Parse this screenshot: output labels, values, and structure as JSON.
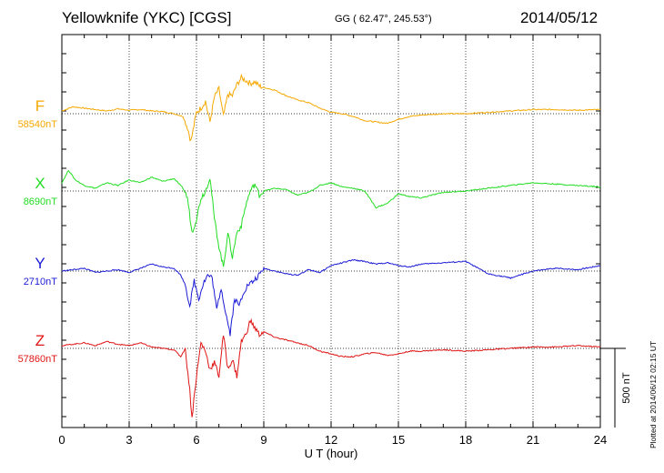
{
  "header": {
    "station": "Yellowknife (YKC)  [CGS]",
    "coords": "GG ( 62.47°, 245.53°)",
    "date": "2014/05/12"
  },
  "plotted_note": "Plotted at 2014/06/12 02:15 UT",
  "scale_bar_label": "500 nT",
  "chart_data": {
    "type": "line",
    "xlabel": "U T (hour)",
    "xlim": [
      0,
      24
    ],
    "xticks": [
      "0",
      "3",
      "6",
      "9",
      "12",
      "15",
      "18",
      "21",
      "24"
    ],
    "scale_nT_per_division": 500,
    "grid": true,
    "series": [
      {
        "name": "F",
        "baseline_label": "58540nT",
        "color": "#f5a800",
        "x": [
          0,
          0.5,
          1,
          1.5,
          2,
          2.5,
          3,
          3.5,
          4,
          4.5,
          5,
          5.4,
          5.6,
          5.75,
          5.85,
          6,
          6.2,
          6.4,
          6.6,
          6.8,
          7,
          7.2,
          7.4,
          7.6,
          7.8,
          8,
          8.2,
          8.4,
          8.6,
          8.8,
          9,
          9.5,
          10,
          10.5,
          11,
          11.5,
          12,
          12.5,
          13,
          13.5,
          14,
          14.5,
          15,
          15.5,
          16,
          17,
          18,
          19,
          20,
          21,
          22,
          23,
          24
        ],
        "values": [
          20,
          50,
          40,
          30,
          20,
          35,
          25,
          30,
          20,
          15,
          0,
          -20,
          -100,
          -200,
          -120,
          10,
          40,
          90,
          -60,
          120,
          180,
          -20,
          140,
          130,
          210,
          260,
          240,
          220,
          230,
          200,
          190,
          170,
          130,
          100,
          80,
          40,
          10,
          0,
          -20,
          -50,
          -60,
          -70,
          -40,
          -20,
          -10,
          0,
          0,
          10,
          20,
          30,
          30,
          25,
          30
        ]
      },
      {
        "name": "X",
        "baseline_label": "8690nT",
        "color": "#22dd22",
        "x": [
          0,
          0.3,
          0.6,
          1,
          1.5,
          2,
          2.5,
          3,
          3.5,
          4,
          4.5,
          5,
          5.4,
          5.6,
          5.8,
          6,
          6.2,
          6.4,
          6.6,
          6.8,
          7,
          7.2,
          7.4,
          7.6,
          7.8,
          8,
          8.2,
          8.4,
          8.6,
          8.8,
          9,
          9.5,
          10,
          10.5,
          11,
          11.5,
          12,
          12.5,
          13,
          13.5,
          14,
          14.5,
          15,
          15.5,
          16,
          17,
          18,
          19,
          20,
          21,
          22,
          23,
          24
        ],
        "values": [
          60,
          150,
          80,
          40,
          20,
          60,
          40,
          80,
          60,
          100,
          70,
          90,
          20,
          -50,
          -300,
          -200,
          -50,
          0,
          100,
          -200,
          -400,
          -550,
          -300,
          -480,
          -300,
          -250,
          -100,
          0,
          50,
          -30,
          0,
          20,
          10,
          -30,
          -10,
          40,
          60,
          30,
          20,
          0,
          -120,
          -90,
          -20,
          -40,
          -50,
          -10,
          0,
          20,
          40,
          60,
          50,
          40,
          30
        ]
      },
      {
        "name": "Y",
        "baseline_label": "2710nT",
        "color": "#1a1ad6",
        "x": [
          0,
          0.5,
          1,
          1.5,
          2,
          2.5,
          3,
          3.5,
          4,
          4.5,
          5,
          5.3,
          5.5,
          5.7,
          5.9,
          6.1,
          6.3,
          6.5,
          6.7,
          6.9,
          7.1,
          7.3,
          7.5,
          7.7,
          7.9,
          8.1,
          8.3,
          8.5,
          8.8,
          9,
          9.5,
          10,
          10.5,
          11,
          11.5,
          12,
          12.5,
          13,
          13.5,
          14,
          14.5,
          15,
          15.5,
          16,
          17,
          18,
          19,
          20,
          21,
          22,
          23,
          24
        ],
        "values": [
          0,
          10,
          20,
          -10,
          0,
          10,
          -10,
          20,
          50,
          30,
          20,
          -30,
          -100,
          -250,
          -70,
          -200,
          -90,
          -30,
          -50,
          -280,
          -120,
          -300,
          -450,
          -200,
          -250,
          -150,
          -100,
          -80,
          -30,
          20,
          0,
          -20,
          -30,
          10,
          -10,
          40,
          60,
          80,
          70,
          50,
          60,
          40,
          30,
          50,
          60,
          70,
          -20,
          -50,
          0,
          20,
          10,
          40
        ]
      },
      {
        "name": "Z",
        "baseline_label": "57860nT",
        "color": "#e01414",
        "x": [
          0,
          0.5,
          1,
          1.5,
          2,
          2.5,
          3,
          3.5,
          4,
          4.5,
          5,
          5.3,
          5.5,
          5.7,
          5.8,
          6,
          6.2,
          6.4,
          6.6,
          6.8,
          7,
          7.2,
          7.4,
          7.6,
          7.8,
          8,
          8.2,
          8.4,
          8.6,
          8.8,
          9,
          9.5,
          10,
          10.5,
          11,
          11.5,
          12,
          12.5,
          13,
          13.5,
          14,
          14.5,
          15,
          15.5,
          16,
          17,
          18,
          19,
          20,
          21,
          22,
          23,
          24
        ],
        "values": [
          20,
          30,
          40,
          20,
          50,
          30,
          20,
          40,
          10,
          0,
          -10,
          -60,
          0,
          -300,
          -500,
          -200,
          40,
          -20,
          -150,
          -100,
          -200,
          100,
          -150,
          -80,
          -200,
          50,
          100,
          200,
          150,
          100,
          120,
          80,
          60,
          40,
          20,
          -20,
          -40,
          -60,
          -60,
          -40,
          -30,
          -50,
          -40,
          -20,
          -20,
          -10,
          -20,
          -10,
          0,
          10,
          10,
          20,
          10
        ]
      }
    ]
  }
}
